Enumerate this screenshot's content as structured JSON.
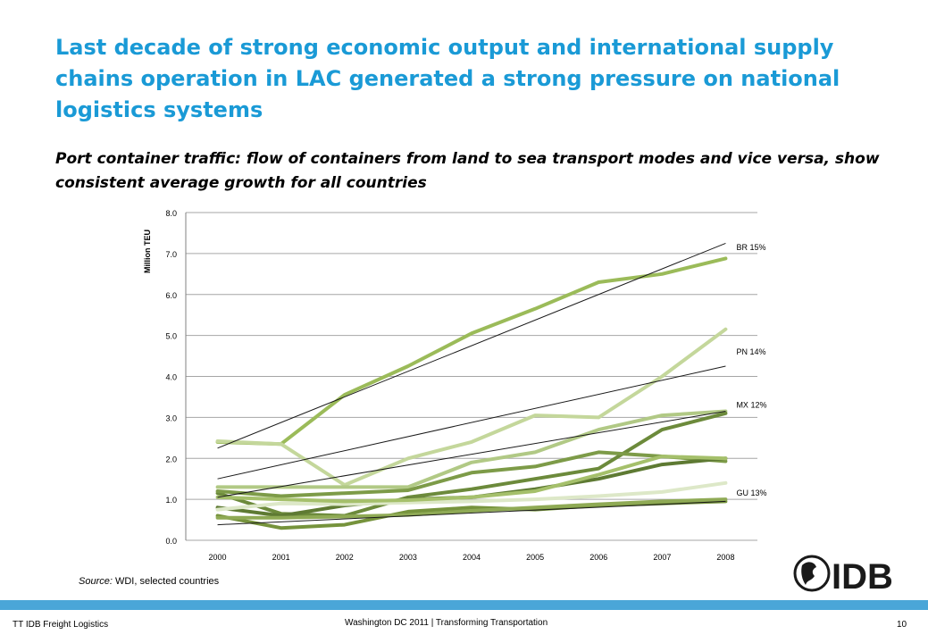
{
  "slide": {
    "title": "Last decade of strong economic output and international supply chains operation in LAC generated a strong pressure on national logistics systems",
    "subtitle": "Port container traffic: flow of containers from land to sea transport modes and vice versa, show consistent average growth for all countries",
    "source_label": "Source:",
    "source_text": " WDI, selected countries",
    "logo_text": "IDB",
    "footer_left": "TT IDB Freight Logistics",
    "footer_center": "Washington DC 2011 | Transforming Transportation",
    "page_number": "10"
  },
  "colors": {
    "title": "#1a9ad6",
    "footer_bar": "#4aa6d8",
    "grid": "#a6a6a6",
    "trend": "#1a1a1a",
    "logo": "#1a1a1a"
  },
  "chart_data": {
    "type": "line",
    "ylabel": "Million TEU",
    "categories": [
      "2000",
      "2001",
      "2002",
      "2003",
      "2004",
      "2005",
      "2006",
      "2007",
      "2008"
    ],
    "ylim": [
      0,
      8
    ],
    "yticks": [
      "0.0",
      "1.0",
      "2.0",
      "3.0",
      "4.0",
      "5.0",
      "6.0",
      "7.0",
      "8.0"
    ],
    "grid": true,
    "series": [
      {
        "values": [
          2.4,
          2.35,
          3.55,
          4.25,
          5.05,
          5.65,
          6.3,
          6.5,
          6.88
        ],
        "color": "#9bbb59"
      },
      {
        "values": [
          2.42,
          2.35,
          1.35,
          2.0,
          2.4,
          3.05,
          3.0,
          4.0,
          5.15
        ],
        "color": "#c4d79b"
      },
      {
        "values": [
          1.3,
          1.3,
          1.3,
          1.3,
          1.9,
          2.15,
          2.7,
          3.05,
          3.15
        ],
        "color": "#b1c985"
      },
      {
        "values": [
          1.15,
          0.65,
          0.6,
          1.05,
          1.25,
          1.5,
          1.75,
          2.7,
          3.1
        ],
        "color": "#6c8a3b"
      },
      {
        "values": [
          1.2,
          1.08,
          1.15,
          1.22,
          1.65,
          1.8,
          2.15,
          2.05,
          1.93
        ],
        "color": "#7d9b48"
      },
      {
        "values": [
          0.8,
          0.6,
          0.85,
          1.0,
          1.05,
          1.25,
          1.5,
          1.85,
          2.0
        ],
        "color": "#5e7a33"
      },
      {
        "values": [
          0.6,
          0.3,
          0.38,
          0.7,
          0.8,
          0.75,
          0.85,
          0.9,
          0.95
        ],
        "color": "#76933c"
      },
      {
        "values": [
          0.75,
          0.9,
          0.88,
          0.92,
          0.95,
          1.0,
          1.08,
          1.18,
          1.4
        ],
        "color": "#dde8c8"
      },
      {
        "values": [
          0.55,
          0.55,
          0.58,
          0.62,
          0.72,
          0.8,
          0.88,
          0.95,
          1.0
        ],
        "color": "#8faa55"
      },
      {
        "values": [
          1.05,
          1.0,
          0.95,
          0.98,
          1.05,
          1.2,
          1.6,
          2.05,
          2.0
        ],
        "color": "#a5c06b"
      }
    ],
    "trend_lines": [
      {
        "start": 2.25,
        "end": 7.25
      },
      {
        "start": 1.5,
        "end": 4.25
      },
      {
        "start": 1.05,
        "end": 3.15
      },
      {
        "start": 0.38,
        "end": 0.95
      }
    ],
    "annotations": [
      {
        "text": "BR  15%",
        "y": 7.15
      },
      {
        "text": "PN 14%",
        "y": 4.6
      },
      {
        "text": "MX 12%",
        "y": 3.3
      },
      {
        "text": "GU 13%",
        "y": 1.15
      }
    ]
  }
}
